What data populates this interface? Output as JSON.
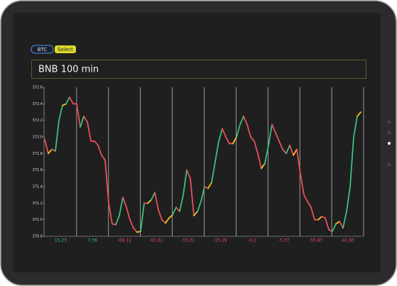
{
  "buttons": {
    "coin": "BTC",
    "select": "Select"
  },
  "chart_data": {
    "type": "line",
    "title": "BNB 100 min",
    "values": [
      371.97,
      371.8,
      371.85,
      371.83,
      372.2,
      372.38,
      372.4,
      372.48,
      372.4,
      372.4,
      372.12,
      372.25,
      372.18,
      371.95,
      371.95,
      371.9,
      371.78,
      371.72,
      371.2,
      370.95,
      370.94,
      371.05,
      371.27,
      371.15,
      371.0,
      370.9,
      370.85,
      370.86,
      371.2,
      371.2,
      371.24,
      371.33,
      371.12,
      371.0,
      370.96,
      371.02,
      371.06,
      371.15,
      371.1,
      371.3,
      371.6,
      371.5,
      371.05,
      371.1,
      371.22,
      371.4,
      371.38,
      371.45,
      371.7,
      371.95,
      372.1,
      372.0,
      371.92,
      371.92,
      372.0,
      372.15,
      372.25,
      372.15,
      372.0,
      371.95,
      371.8,
      371.62,
      371.68,
      371.9,
      372.15,
      372.05,
      371.95,
      371.85,
      371.8,
      371.9,
      371.78,
      371.85,
      371.55,
      371.3,
      371.22,
      371.15,
      371.0,
      371.0,
      371.04,
      371.02,
      370.88,
      370.86,
      370.95,
      370.98,
      370.9,
      371.1,
      371.4,
      372.0,
      372.25,
      372.3
    ],
    "ylim": [
      370.8,
      372.6
    ],
    "yticks": [
      370.8,
      {
        "value": 371.0,
        "label": "371.0"
      },
      371.2,
      371.4,
      371.6,
      371.8,
      {
        "value": 372.0,
        "label": "372.0"
      },
      372.2,
      372.4,
      372.6
    ],
    "period_changes": [
      15.23,
      7.36,
      -69.12,
      -61.61,
      -55.31,
      -15.19,
      -0.2,
      -5.37,
      -55.83,
      -41.85
    ],
    "up_color": "#3cc07c",
    "mild_color": "#f2c420",
    "down_color": "#ea4f5a"
  }
}
